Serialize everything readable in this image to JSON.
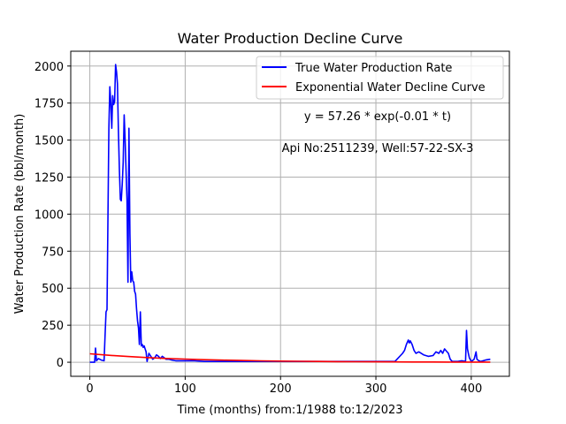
{
  "chart_data": {
    "type": "line",
    "title": "Water Production Decline Curve",
    "xlabel": "Time (months) from:1/1988 to:12/2023",
    "ylabel": "Water Production Rate (bbl/month)",
    "xlim": [
      -20,
      440
    ],
    "ylim": [
      -95,
      2100
    ],
    "xticks": [
      0,
      100,
      200,
      300,
      400
    ],
    "yticks": [
      0,
      250,
      500,
      750,
      1000,
      1250,
      1500,
      1750,
      2000
    ],
    "grid": true,
    "legend_position": "top-right",
    "annotations": [
      {
        "text": "y = 57.26 * exp(-0.01 * t)",
        "x": 300,
        "y": 1650
      },
      {
        "text": "Api No:2511239, Well:57-22-SX-3",
        "x": 300,
        "y": 1440
      }
    ],
    "series": [
      {
        "name": "True Water Production Rate",
        "color": "#0000ff",
        "x": [
          0,
          5,
          6,
          7,
          9,
          12,
          15,
          16,
          17,
          18,
          20,
          21,
          22,
          23,
          24,
          25,
          26,
          27,
          28,
          29,
          30,
          31,
          32,
          33,
          34,
          35,
          36,
          37,
          38,
          39,
          40,
          41,
          42,
          43,
          44,
          45,
          46,
          47,
          48,
          49,
          50,
          51,
          52,
          53,
          54,
          55,
          56,
          57,
          58,
          59,
          60,
          62,
          64,
          66,
          68,
          70,
          72,
          74,
          76,
          78,
          80,
          83,
          86,
          90,
          95,
          100,
          110,
          120,
          130,
          140,
          150,
          160,
          170,
          180,
          185,
          190,
          200,
          220,
          240,
          260,
          280,
          300,
          320,
          328,
          330,
          332,
          334,
          335,
          336,
          338,
          340,
          342,
          345,
          350,
          355,
          360,
          363,
          366,
          368,
          370,
          372,
          374,
          376,
          378,
          380,
          383,
          386,
          390,
          394,
          395,
          396,
          397,
          398,
          400,
          403,
          405,
          406,
          408,
          410,
          415,
          420
        ],
        "y": [
          0,
          0,
          95,
          10,
          25,
          15,
          10,
          180,
          340,
          355,
          1580,
          1860,
          1750,
          1580,
          1800,
          1740,
          1760,
          2010,
          1960,
          1880,
          1560,
          1300,
          1100,
          1090,
          1200,
          1350,
          1670,
          1500,
          1300,
          1100,
          540,
          1580,
          870,
          540,
          610,
          550,
          540,
          480,
          460,
          360,
          280,
          230,
          120,
          340,
          110,
          120,
          100,
          110,
          90,
          70,
          5,
          60,
          40,
          20,
          30,
          50,
          40,
          25,
          40,
          30,
          20,
          20,
          15,
          10,
          10,
          10,
          10,
          5,
          5,
          5,
          5,
          5,
          5,
          5,
          5,
          5,
          5,
          5,
          5,
          5,
          5,
          5,
          5,
          60,
          80,
          120,
          150,
          130,
          145,
          120,
          80,
          60,
          70,
          50,
          40,
          45,
          70,
          60,
          80,
          60,
          90,
          75,
          60,
          20,
          5,
          5,
          5,
          10,
          5,
          215,
          90,
          60,
          30,
          5,
          20,
          70,
          20,
          10,
          5,
          15,
          20
        ]
      },
      {
        "name": "Exponential Water Decline Curve",
        "color": "#ff0000",
        "x": [
          0,
          20,
          40,
          60,
          80,
          100,
          120,
          140,
          160,
          180,
          200,
          220,
          240,
          260,
          280,
          300,
          320,
          340,
          360,
          380,
          400,
          420
        ],
        "y": [
          57.26,
          46.88,
          38.38,
          31.42,
          25.73,
          21.06,
          17.25,
          14.12,
          11.56,
          9.46,
          7.75,
          6.34,
          5.19,
          4.25,
          3.48,
          2.85,
          2.33,
          1.91,
          1.57,
          1.28,
          1.05,
          0.86
        ]
      }
    ]
  }
}
